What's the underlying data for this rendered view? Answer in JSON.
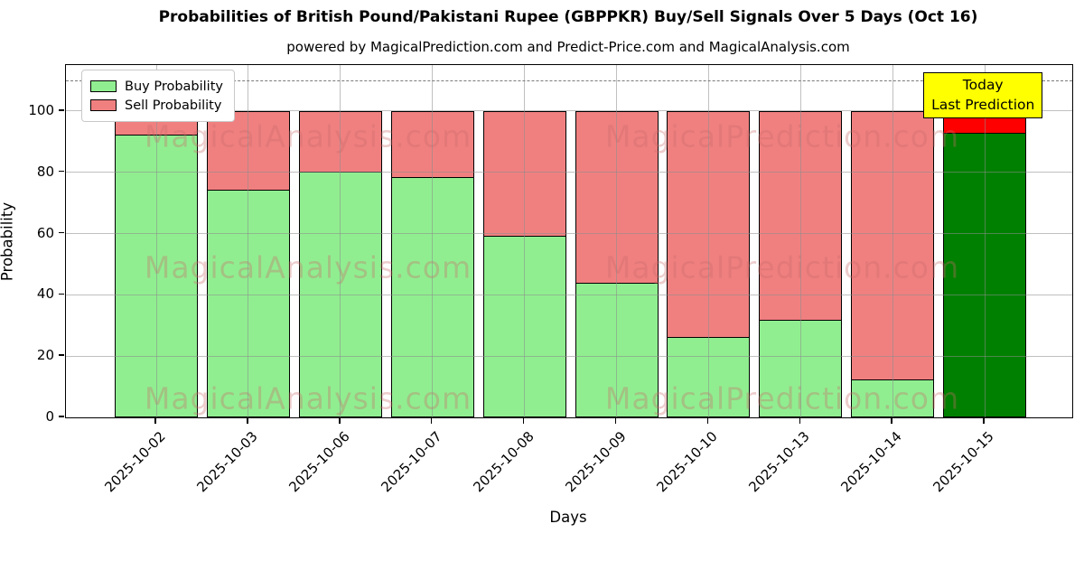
{
  "figure": {
    "title": "Probabilities of British Pound/Pakistani Rupee (GBPPKR) Buy/Sell Signals Over 5 Days (Oct 16)",
    "subtitle": "powered by MagicalPrediction.com and Predict-Price.com and MagicalAnalysis.com"
  },
  "chart_data": {
    "type": "bar",
    "stacked": true,
    "title": "Probabilities of British Pound/Pakistani Rupee (GBPPKR) Buy/Sell Signals Over 5 Days (Oct 16)",
    "xlabel": "Days",
    "ylabel": "Probability",
    "ylim": [
      0,
      115
    ],
    "yticks": [
      0,
      20,
      40,
      60,
      80,
      100
    ],
    "grid": true,
    "categories": [
      "2025-10-02",
      "2025-10-03",
      "2025-10-06",
      "2025-10-07",
      "2025-10-08",
      "2025-10-09",
      "2025-10-10",
      "2025-10-13",
      "2025-10-14",
      "2025-10-15"
    ],
    "series": [
      {
        "name": "Buy Probability",
        "values": [
          92.5,
          74.5,
          80.5,
          78.5,
          59.5,
          44.0,
          26.5,
          32.0,
          12.5,
          93.0
        ],
        "color": "#90ee90",
        "last_bar_color": "#008000"
      },
      {
        "name": "Sell Probability",
        "values": [
          7.5,
          25.5,
          19.5,
          21.5,
          40.5,
          56.0,
          73.5,
          68.0,
          87.5,
          7.0
        ],
        "color": "#f08080",
        "last_bar_color": "#ff0000"
      }
    ],
    "bar_edge_color": "#000000",
    "legend_position": "upper left",
    "threshold_line": {
      "y": 110,
      "style": "dashed",
      "color": "#7a7a7a"
    },
    "annotation": {
      "line1": "Today",
      "line2": "Last Prediction",
      "bg_color": "#ffff00",
      "border_color": "#000000",
      "target_category": "2025-10-15"
    },
    "watermarks": {
      "left_text": "MagicalAnalysis.com",
      "right_text": "MagicalPrediction.com",
      "rows": 3,
      "color": "rgba(201,106,106,0.34)"
    }
  }
}
